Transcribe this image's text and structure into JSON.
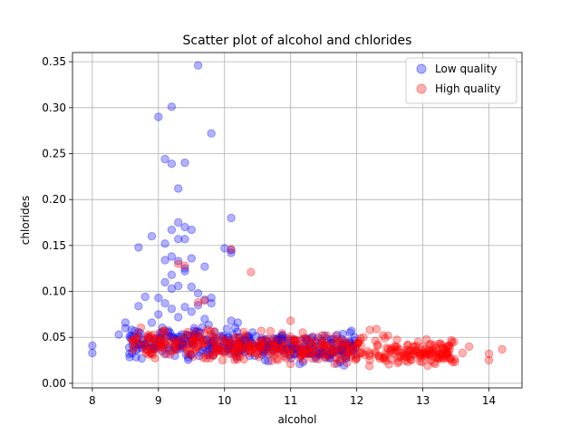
{
  "chart_data": {
    "type": "scatter",
    "title": "Scatter plot of alcohol and chlorides",
    "xlabel": "alcohol",
    "ylabel": "chlorides",
    "xlim": [
      7.7,
      14.5
    ],
    "ylim": [
      -0.005,
      0.36
    ],
    "xticks": [
      8,
      9,
      10,
      11,
      12,
      13,
      14
    ],
    "yticks": [
      0.0,
      0.05,
      0.1,
      0.15,
      0.2,
      0.25,
      0.3,
      0.35
    ],
    "ytick_labels": [
      "0.00",
      "0.05",
      "0.10",
      "0.15",
      "0.20",
      "0.25",
      "0.30",
      "0.35"
    ],
    "grid": true,
    "legend_position": "top-right",
    "series": [
      {
        "name": "Low quality",
        "color": "#0000ff",
        "alpha": 0.3,
        "points": [
          [
            9.6,
            0.346
          ],
          [
            9.2,
            0.301
          ],
          [
            9.0,
            0.29
          ],
          [
            9.8,
            0.272
          ],
          [
            9.1,
            0.244
          ],
          [
            9.2,
            0.239
          ],
          [
            9.4,
            0.24
          ],
          [
            9.3,
            0.212
          ],
          [
            10.1,
            0.18
          ],
          [
            9.3,
            0.175
          ],
          [
            9.4,
            0.17
          ],
          [
            9.2,
            0.167
          ],
          [
            9.5,
            0.167
          ],
          [
            8.9,
            0.16
          ],
          [
            9.3,
            0.157
          ],
          [
            9.4,
            0.157
          ],
          [
            9.1,
            0.152
          ],
          [
            8.7,
            0.148
          ],
          [
            10.0,
            0.147
          ],
          [
            10.1,
            0.145
          ],
          [
            10.1,
            0.142
          ],
          [
            9.2,
            0.138
          ],
          [
            9.1,
            0.134
          ],
          [
            9.3,
            0.133
          ],
          [
            9.5,
            0.136
          ],
          [
            9.4,
            0.125
          ],
          [
            9.4,
            0.122
          ],
          [
            9.7,
            0.127
          ],
          [
            9.2,
            0.118
          ],
          [
            9.1,
            0.11
          ],
          [
            9.3,
            0.106
          ],
          [
            9.2,
            0.103
          ],
          [
            9.5,
            0.105
          ],
          [
            9.6,
            0.098
          ],
          [
            9.0,
            0.093
          ],
          [
            8.8,
            0.094
          ],
          [
            9.7,
            0.091
          ],
          [
            9.8,
            0.093
          ],
          [
            9.1,
            0.087
          ],
          [
            8.7,
            0.084
          ],
          [
            9.6,
            0.085
          ],
          [
            9.4,
            0.083
          ],
          [
            9.2,
            0.081
          ],
          [
            9.8,
            0.087
          ],
          [
            9.5,
            0.078
          ],
          [
            9.0,
            0.075
          ],
          [
            9.3,
            0.072
          ],
          [
            9.7,
            0.07
          ],
          [
            10.1,
            0.068
          ],
          [
            10.2,
            0.066
          ],
          [
            8.9,
            0.066
          ],
          [
            8.5,
            0.066
          ],
          [
            8.5,
            0.06
          ],
          [
            8.4,
            0.053
          ],
          [
            8.0,
            0.041
          ],
          [
            8.0,
            0.033
          ]
        ],
        "cluster": {
          "x": [
            8.55,
            12.0
          ],
          "y_center": 0.044,
          "spread": 0.013,
          "count": 380
        }
      },
      {
        "name": "High quality",
        "color": "#ff0000",
        "alpha": 0.3,
        "points": [
          [
            9.3,
            0.13
          ],
          [
            10.4,
            0.121
          ],
          [
            10.1,
            0.146
          ],
          [
            9.7,
            0.09
          ],
          [
            9.4,
            0.128
          ],
          [
            9.6,
            0.088
          ],
          [
            11.0,
            0.068
          ],
          [
            12.2,
            0.058
          ],
          [
            12.3,
            0.059
          ],
          [
            12.4,
            0.052
          ],
          [
            14.2,
            0.037
          ],
          [
            14.0,
            0.032
          ],
          [
            14.0,
            0.025
          ],
          [
            13.7,
            0.04
          ],
          [
            13.6,
            0.033
          ],
          [
            13.4,
            0.041
          ],
          [
            13.3,
            0.033
          ],
          [
            13.2,
            0.028
          ],
          [
            13.1,
            0.035
          ],
          [
            13.0,
            0.04
          ]
        ],
        "cluster": {
          "x": [
            8.6,
            13.5
          ],
          "y_center": 0.038,
          "spread": 0.012,
          "count": 470
        }
      }
    ]
  }
}
